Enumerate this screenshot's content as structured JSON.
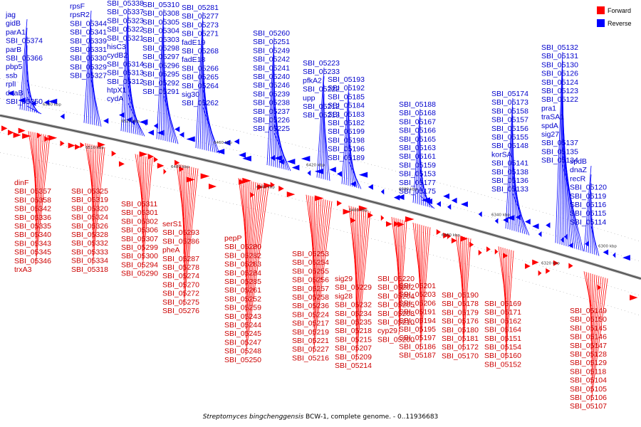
{
  "caption": {
    "organism": "Streptomyces bingchenggensis",
    "suffix": " BCW-1, complete genome. - 0..11936683"
  },
  "legend": {
    "forward_label": "Forward",
    "reverse_label": "Reverse",
    "forward_color": "#ff0000",
    "reverse_color": "#0000ff"
  },
  "ticks": [
    "6500 kbp",
    "6510 kbp",
    "6520 kbp",
    "6480 kbp",
    "6460 kbp",
    "6440 kbp",
    "6420 kbp",
    "6400 kbp",
    "6380 kbp",
    "6360 kbp",
    "6340 kbp",
    "6320 kbp",
    "6300 kbp"
  ],
  "reverse_labels": [
    "jag",
    "gidB",
    "parA1",
    "SBI_05374",
    "parB",
    "SBI_05366",
    "pbp5",
    "ssb",
    "rplI",
    "dnaB",
    "SBI_05350",
    "rpsF",
    "rpsR2",
    "SBI_05344",
    "SBI_05341",
    "SBI_05339",
    "SBI_05331",
    "SBI_05330",
    "SBI_05329",
    "SBI_05327",
    "SBI_05338",
    "SBI_05337",
    "SBI_05323",
    "SBI_05322",
    "SBI_05321",
    "hisC3",
    "cydB2",
    "SBI_05314",
    "SBI_05313",
    "SBI_05312",
    "htpX1",
    "cydA",
    "SBI_05310",
    "SBI_05308",
    "SBI_05305",
    "SBI_05304",
    "SBI_05303",
    "SBI_05298",
    "SBI_05297",
    "SBI_05296",
    "SBI_05295",
    "SBI_05292",
    "SBI_05291",
    "SBI_05281",
    "SBI_05277",
    "SBI_05273",
    "SBI_05271",
    "fadE19",
    "SBI_05268",
    "fadE18",
    "SBI_05266",
    "SBI_05265",
    "SBI_05264",
    "sig30",
    "SBI_05262",
    "SBI_05260",
    "SBI_05251",
    "SBI_05249",
    "SBI_05242",
    "SBI_05241",
    "SBI_05240",
    "SBI_05246",
    "SBI_05239",
    "SBI_05238",
    "SBI_05237",
    "SBI_05226",
    "SBI_05225",
    "SBI_05223",
    "SBI_05233",
    "pfkA2",
    "SBI_05222",
    "upp",
    "SBI_05212",
    "SBI_05213",
    "SBI_05193",
    "SBI_05192",
    "SBI_05185",
    "SBI_05184",
    "SBI_05183",
    "SBI_05182",
    "SBI_05199",
    "SBI_05198",
    "SBI_05196",
    "SBI_05189",
    "SBI_05188",
    "SBI_05168",
    "SBI_05167",
    "SBI_05166",
    "SBI_05165",
    "SBI_05163",
    "SBI_05161",
    "SBI_05159",
    "SBI_05153",
    "SBI_05177",
    "SBI_05175",
    "SBI_05174",
    "SBI_05173",
    "SBI_05158",
    "SBI_05157",
    "SBI_05156",
    "SBI_05155",
    "SBI_05148",
    "korSA",
    "SBI_05141",
    "SBI_05138",
    "SBI_05136",
    "SBI_05133",
    "SBI_05132",
    "SBI_05131",
    "SBI_05130",
    "SBI_05126",
    "SBI_05124",
    "SBI_05123",
    "SBI_05122",
    "pra1",
    "traSA1",
    "spdA",
    "sig27",
    "SBI_05137",
    "SBI_05135",
    "SBI_05134",
    "spdB",
    "dnaZ",
    "recR",
    "SBI_05120",
    "SBI_05119",
    "SBI_05116",
    "SBI_05115",
    "SBI_05114"
  ],
  "forward_labels": [
    "dinF",
    "SBI_05357",
    "SBI_05358",
    "SBI_05342",
    "SBI_05336",
    "SBI_05335",
    "SBI_05340",
    "SBI_05343",
    "SBI_05345",
    "SBI_05346",
    "trxA3",
    "SBI_05325",
    "SBI_05319",
    "SBI_05320",
    "SBI_05324",
    "SBI_05326",
    "SBI_05328",
    "SBI_05332",
    "SBI_05333",
    "SBI_05334",
    "SBI_05318",
    "SBI_05311",
    "SBI_05301",
    "SBI_05302",
    "SBI_05306",
    "SBI_05307",
    "SBI_05299",
    "SBI_05300",
    "SBI_05294",
    "SBI_05290",
    "serS1",
    "SBI_05293",
    "SBI_05286",
    "pheA",
    "SBI_05287",
    "SBI_05278",
    "SBI_05274",
    "SBI_05270",
    "SBI_05272",
    "SBI_05275",
    "SBI_05276",
    "pepP",
    "SBI_05280",
    "SBI_05282",
    "SBI_05283",
    "SBI_05284",
    "SBI_05285",
    "SBI_05261",
    "SBI_05252",
    "SBI_05259",
    "SBI_05243",
    "SBI_05244",
    "SBI_05245",
    "SBI_05247",
    "SBI_05248",
    "SBI_05250",
    "SBI_05253",
    "SBI_05254",
    "SBI_05255",
    "SBI_05256",
    "SBI_05257",
    "SBI_05258",
    "SBI_05236",
    "SBI_05224",
    "SBI_05217",
    "SBI_05219",
    "SBI_05221",
    "SBI_05227",
    "SBI_05216",
    "sig29",
    "SBI_05229",
    "sig28",
    "SBI_05232",
    "SBI_05234",
    "SBI_05235",
    "SBI_05218",
    "SBI_05215",
    "SBI_05207",
    "SBI_05209",
    "SBI_05214",
    "SBI_05220",
    "SBI_05202",
    "SBI_05204",
    "SBI_05205",
    "SBI_05208",
    "SBI_05210",
    "cyp29",
    "SBI_05200",
    "SBI_05201",
    "SBI_05203",
    "SBI_05206",
    "SBI_05191",
    "SBI_05194",
    "SBI_05195",
    "SBI_05197",
    "SBI_05186",
    "SBI_05187",
    "SBI_05190",
    "SBI_05178",
    "SBI_05179",
    "SBI_05176",
    "SBI_05180",
    "SBI_05181",
    "SBI_05172",
    "SBI_05170",
    "SBI_05169",
    "SBI_05171",
    "SBI_05162",
    "SBI_05164",
    "SBI_05151",
    "SBI_05154",
    "SBI_05160",
    "SBI_05152",
    "SBI_05149",
    "SBI_05150",
    "SBI_05145",
    "SBI_05146",
    "SBI_05147",
    "SBI_05128",
    "SBI_05129",
    "SBI_05118",
    "SBI_05104",
    "SBI_05105",
    "SBI_05106",
    "SBI_05107",
    "SBI_05108",
    "SBI_05109",
    "SBI_05110",
    "SBI_05111",
    "SBI_05112",
    "SBI_05113",
    "SBI_05117"
  ]
}
